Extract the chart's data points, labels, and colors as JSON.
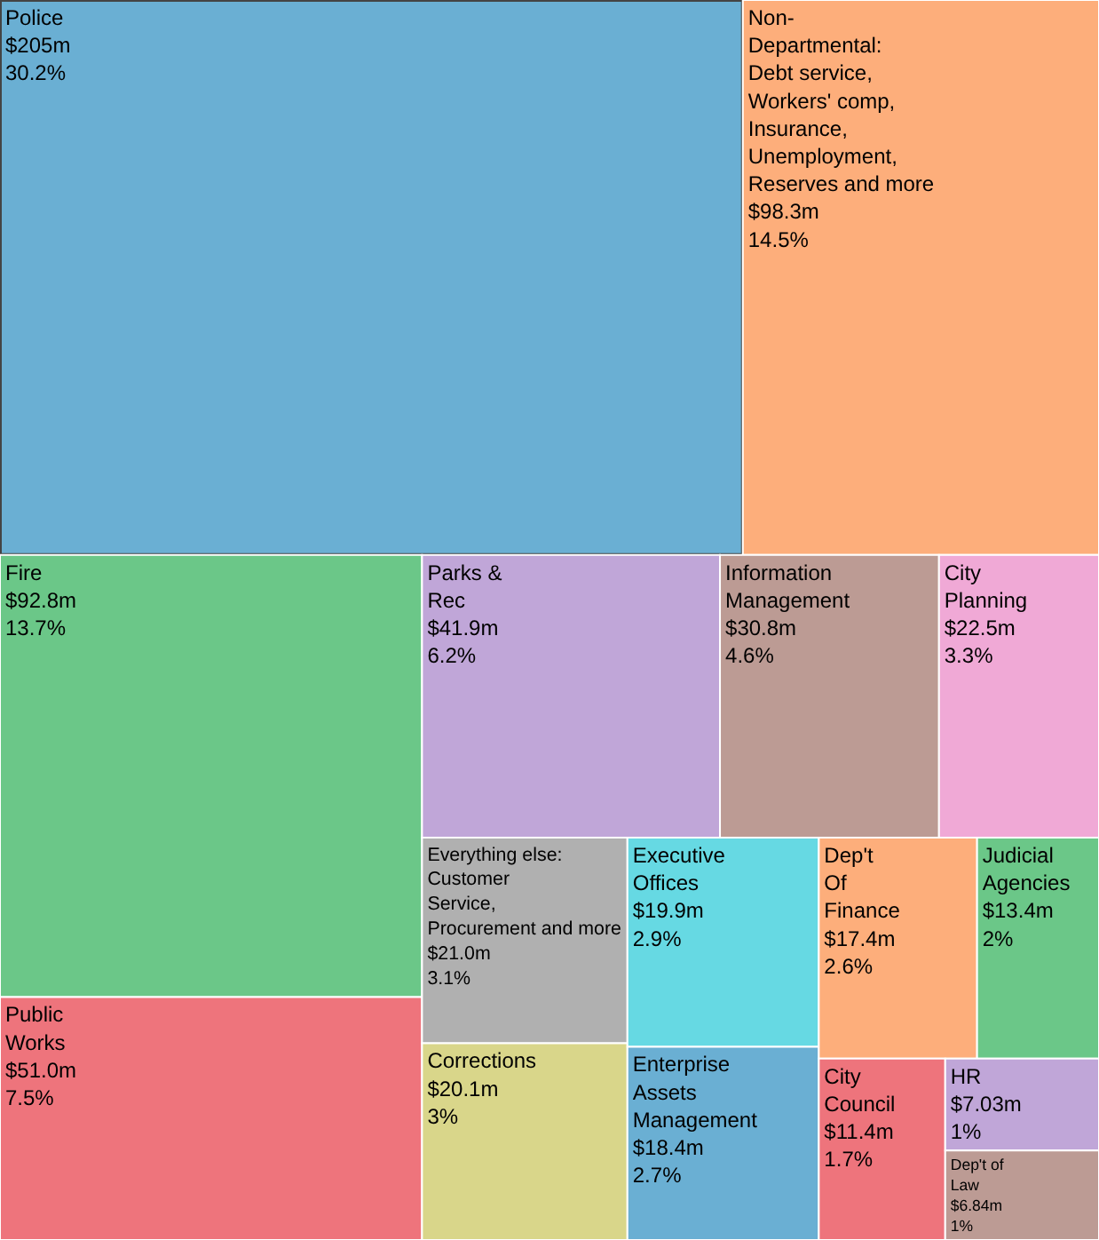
{
  "chart_data": {
    "type": "other",
    "categories": [
      "Police",
      "Non-\nDepartmental:\nDebt service,\nWorkers' comp,\nInsurance,\nUnemployment,\nReserves and more",
      "Fire",
      "Public\nWorks",
      "Parks &\nRec",
      "Information\nManagement",
      "City\nPlanning",
      "Everything else:\nCustomer\nService,\nProcurement and more",
      "Corrections",
      "Executive\nOffices",
      "Enterprise\nAssets\nManagement",
      "Dep't\nOf\nFinance",
      "Judicial\nAgencies",
      "City\nCouncil",
      "HR",
      "Dep't of\nLaw"
    ],
    "values": [
      205,
      98.3,
      92.8,
      51.0,
      41.9,
      30.8,
      22.5,
      21.0,
      20.1,
      19.9,
      18.4,
      17.4,
      13.4,
      11.4,
      7.03,
      6.84
    ],
    "value_labels": [
      "$205m",
      "$98.3m",
      "$92.8m",
      "$51.0m",
      "$41.9m",
      "$30.8m",
      "$22.5m",
      "$21.0m",
      "$20.1m",
      "$19.9m",
      "$18.4m",
      "$17.4m",
      "$13.4m",
      "$11.4m",
      "$7.03m",
      "$6.84m"
    ],
    "annotations": [
      "30.2%",
      "14.5%",
      "13.7%",
      "7.5%",
      "6.2%",
      "4.6%",
      "3.3%",
      "3.1%",
      "3%",
      "2.9%",
      "2.7%",
      "2.6%",
      "2%",
      "1.7%",
      "1%",
      "1%"
    ],
    "colors": [
      "#6aafd3",
      "#fdae7b",
      "#6bc788",
      "#ee747c",
      "#c0a6d8",
      "#bc9b94",
      "#f0a9d6",
      "#b0b0b0",
      "#d9d68a",
      "#66d9e3",
      "#6aafd3",
      "#fdae7b",
      "#6bc788",
      "#ee747c",
      "#c0a6d8",
      "#bc9b94"
    ]
  }
}
